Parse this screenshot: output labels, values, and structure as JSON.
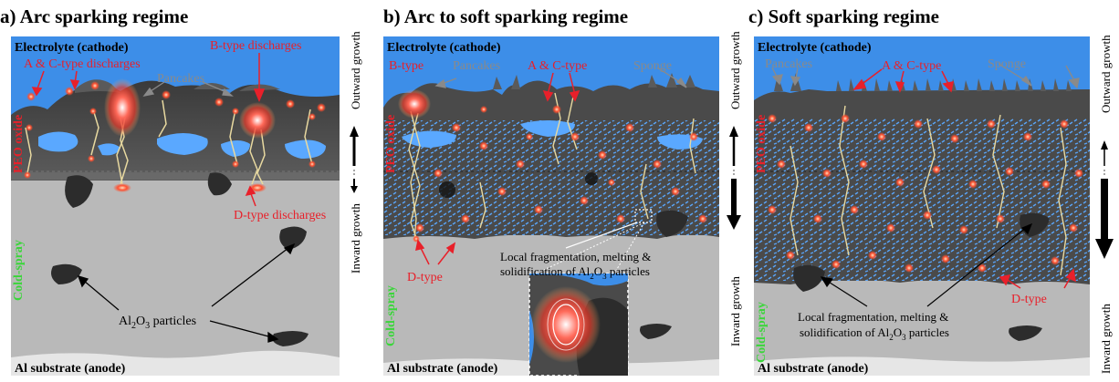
{
  "colors": {
    "electrolyte": "#3d8ee8",
    "oxide": "#4a4a4a",
    "oxide_light": "#6e6e6e",
    "pancake": "#5a5a5a",
    "pore": "#5aa8ff",
    "coldspray": "#b9b9b9",
    "substrate": "#e8e8e8",
    "particle": "#2c2c2c",
    "label_red": "#e8202a",
    "label_gray": "#8a8a8a",
    "label_green": "#3ad63a",
    "spark": "#ff4a3a"
  },
  "panels": [
    {
      "title": "a) Arc sparking regime",
      "electrolyte": "Electrolyte (cathode)",
      "discharge_ac": "A & C-type discharges",
      "discharge_b": "B-type discharges",
      "pancakes": "Pancakes",
      "discharge_d": "D-type discharges",
      "particles_pre": "Al",
      "particles_sub1": "2",
      "particles_mid": "O",
      "particles_sub2": "3",
      "particles_post": " particles",
      "substrate": "Al substrate (anode)",
      "peo": "PEO oxide",
      "coldspray": "Cold-spray",
      "outward": "Outward growth",
      "inward": "Inward growth"
    },
    {
      "title": "b) Arc to soft sparking regime",
      "electrolyte": "Electrolyte (cathode)",
      "btype": "B-type",
      "pancakes": "Pancakes",
      "actype": "A & C-type",
      "sponge": "Sponge",
      "dtype": "D-type",
      "frag_line1": "Local fragmentation, melting &",
      "frag_line2_pre": "solidification of Al",
      "frag_sub1": "2",
      "frag_mid": "O",
      "frag_sub2": "3",
      "frag_post": " particles",
      "substrate": "Al substrate (anode)",
      "peo": "PEO oxide",
      "coldspray": "Cold-spray",
      "outward": "Outward growth",
      "inward": "Inward growth"
    },
    {
      "title": "c) Soft sparking regime",
      "electrolyte": "Electrolyte (cathode)",
      "pancakes": "Pancakes",
      "actype": "A & C-type",
      "sponge": "Sponge",
      "dtype": "D-type",
      "frag_line1": "Local fragmentation, melting &",
      "frag_line2_pre": "solidification of Al",
      "frag_sub1": "2",
      "frag_mid": "O",
      "frag_sub2": "3",
      "frag_post": " particles",
      "substrate": "Al substrate (anode)",
      "peo": "PEO oxide",
      "coldspray": "Cold-spray",
      "outward": "Outward growth",
      "inward": "Inward growth"
    }
  ]
}
